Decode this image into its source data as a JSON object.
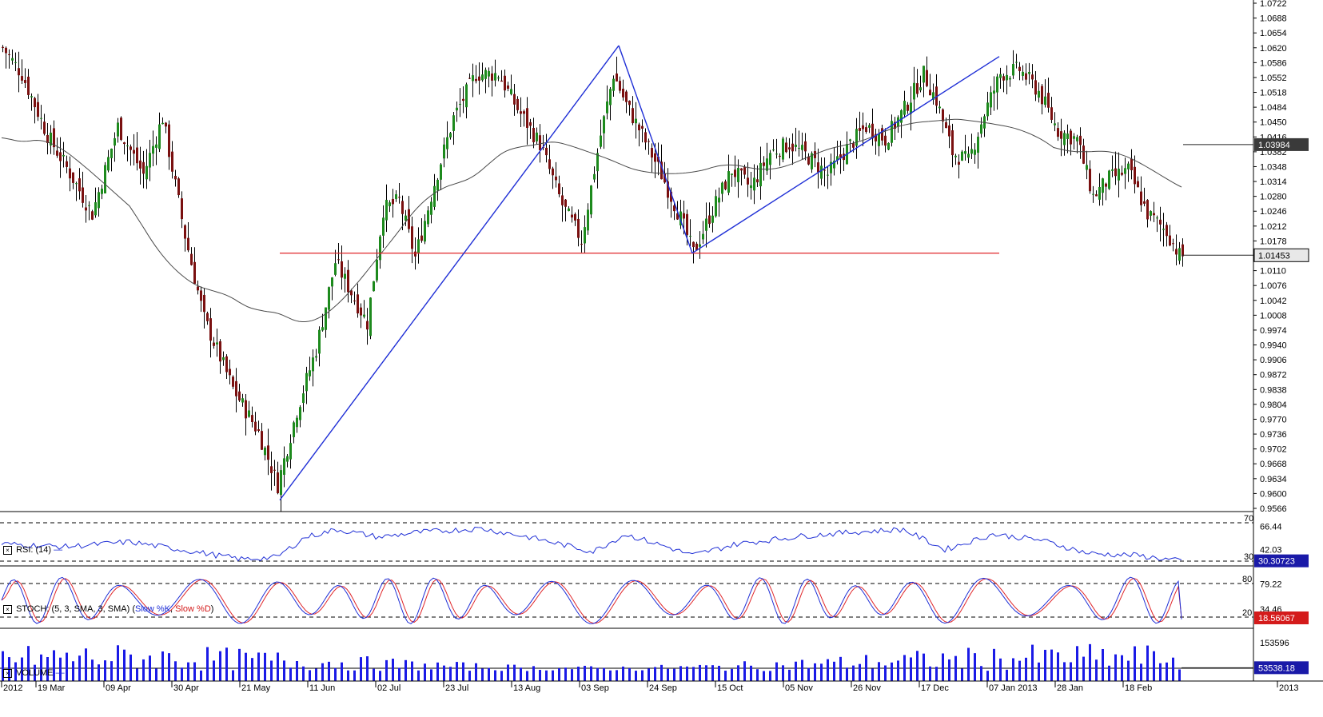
{
  "colors": {
    "bull_candle": "#1d8a1d",
    "bear_candle": "#7a1010",
    "ma_line": "#4a4a4a",
    "trendline": "#1f2fd6",
    "support_line": "#e0262a",
    "rsi_line": "#1f2fd6",
    "stoch_k": "#1f2fd6",
    "stoch_d": "#e0262a",
    "volume_bar": "#1a1ae6",
    "price_tag_dark": "#3a3a3a",
    "last_value_blue": "#1a1aa8",
    "last_value_red": "#d41b1b"
  },
  "chart_data": [
    {
      "type": "candlestick",
      "panel": "price",
      "ylim": [
        0.9566,
        1.0722
      ],
      "y_ticks": [
        "1.0722",
        "1.0688",
        "1.0654",
        "1.0620",
        "1.0586",
        "1.0552",
        "1.0518",
        "1.0484",
        "1.0450",
        "1.0416",
        "1.0382",
        "1.0348",
        "1.0314",
        "1.0280",
        "1.0246",
        "1.0212",
        "1.0178",
        "1.0110",
        "1.0076",
        "1.0042",
        "1.0008",
        "0.9974",
        "0.9940",
        "0.9906",
        "0.9872",
        "0.9838",
        "0.9804",
        "0.9770",
        "0.9736",
        "0.9702",
        "0.9668",
        "0.9634",
        "0.9600",
        "0.9566"
      ],
      "x_labels": [
        "2012",
        "19 Mar",
        "09 Apr",
        "30 Apr",
        "21 May",
        "11 Jun",
        "02 Jul",
        "23 Jul",
        "13 Aug",
        "03 Sep",
        "24 Sep",
        "15 Oct",
        "05 Nov",
        "26 Nov",
        "17 Dec",
        "07 Jan 2013",
        "28 Jan",
        "18 Feb",
        "2013"
      ],
      "anchors": [
        {
          "bar": 0,
          "close": 1.062
        },
        {
          "bar": 6,
          "close": 1.056
        },
        {
          "bar": 14,
          "close": 1.042
        },
        {
          "bar": 22,
          "close": 1.032
        },
        {
          "bar": 28,
          "close": 1.024
        },
        {
          "bar": 36,
          "close": 1.044
        },
        {
          "bar": 44,
          "close": 1.033
        },
        {
          "bar": 50,
          "close": 1.046
        },
        {
          "bar": 57,
          "close": 1.019
        },
        {
          "bar": 63,
          "close": 1.0
        },
        {
          "bar": 72,
          "close": 0.984
        },
        {
          "bar": 80,
          "close": 0.974
        },
        {
          "bar": 86,
          "close": 0.962
        },
        {
          "bar": 92,
          "close": 0.979
        },
        {
          "bar": 98,
          "close": 0.993
        },
        {
          "bar": 104,
          "close": 1.013
        },
        {
          "bar": 109,
          "close": 1.006
        },
        {
          "bar": 114,
          "close": 0.999
        },
        {
          "bar": 119,
          "close": 1.025
        },
        {
          "bar": 124,
          "close": 1.027
        },
        {
          "bar": 129,
          "close": 1.014
        },
        {
          "bar": 135,
          "close": 1.031
        },
        {
          "bar": 141,
          "close": 1.046
        },
        {
          "bar": 148,
          "close": 1.056
        },
        {
          "bar": 155,
          "close": 1.056
        },
        {
          "bar": 161,
          "close": 1.048
        },
        {
          "bar": 168,
          "close": 1.04
        },
        {
          "bar": 175,
          "close": 1.026
        },
        {
          "bar": 181,
          "close": 1.018
        },
        {
          "bar": 187,
          "close": 1.042
        },
        {
          "bar": 191,
          "close": 1.056
        },
        {
          "bar": 195,
          "close": 1.049
        },
        {
          "bar": 200,
          "close": 1.042
        },
        {
          "bar": 206,
          "close": 1.033
        },
        {
          "bar": 212,
          "close": 1.023
        },
        {
          "bar": 216,
          "close": 1.015
        },
        {
          "bar": 222,
          "close": 1.025
        },
        {
          "bar": 228,
          "close": 1.034
        },
        {
          "bar": 234,
          "close": 1.03
        },
        {
          "bar": 240,
          "close": 1.038
        },
        {
          "bar": 246,
          "close": 1.04
        },
        {
          "bar": 252,
          "close": 1.037
        },
        {
          "bar": 258,
          "close": 1.033
        },
        {
          "bar": 264,
          "close": 1.039
        },
        {
          "bar": 270,
          "close": 1.044
        },
        {
          "bar": 276,
          "close": 1.041
        },
        {
          "bar": 282,
          "close": 1.048
        },
        {
          "bar": 288,
          "close": 1.056
        },
        {
          "bar": 292,
          "close": 1.05
        },
        {
          "bar": 297,
          "close": 1.038
        },
        {
          "bar": 302,
          "close": 1.036
        },
        {
          "bar": 307,
          "close": 1.047
        },
        {
          "bar": 312,
          "close": 1.056
        },
        {
          "bar": 318,
          "close": 1.057
        },
        {
          "bar": 324,
          "close": 1.052
        },
        {
          "bar": 330,
          "close": 1.043
        },
        {
          "bar": 336,
          "close": 1.041
        },
        {
          "bar": 341,
          "close": 1.028
        },
        {
          "bar": 346,
          "close": 1.032
        },
        {
          "bar": 352,
          "close": 1.034
        },
        {
          "bar": 358,
          "close": 1.024
        },
        {
          "bar": 364,
          "close": 1.02
        },
        {
          "bar": 368,
          "close": 1.0145
        }
      ],
      "moving_average": {
        "value_last": 1.03984
      },
      "trendlines": [
        {
          "from": {
            "bar": 87,
            "price": 0.9585
          },
          "to": {
            "bar": 193,
            "price": 1.0625
          }
        },
        {
          "from": {
            "bar": 193,
            "price": 1.0625
          },
          "to": {
            "bar": 216,
            "price": 1.015
          }
        },
        {
          "from": {
            "bar": 216,
            "price": 1.015
          },
          "to": {
            "bar": 312,
            "price": 1.06
          }
        }
      ],
      "support_line": {
        "price": 1.015,
        "from_bar": 87,
        "to_bar": 312
      },
      "last_price": "1.01453",
      "ma_price": "1.03984"
    },
    {
      "type": "line",
      "panel": "rsi",
      "title": "RSI: (14)",
      "ylim": [
        25,
        75
      ],
      "y_ticks": [
        "66.44",
        "42.03"
      ],
      "levels": [
        70,
        30
      ],
      "level_labels": [
        "70",
        "30"
      ],
      "last_value": "30.30723",
      "anchors": [
        {
          "bar": 0,
          "v": 48
        },
        {
          "bar": 20,
          "v": 45
        },
        {
          "bar": 40,
          "v": 50
        },
        {
          "bar": 60,
          "v": 40
        },
        {
          "bar": 75,
          "v": 32
        },
        {
          "bar": 86,
          "v": 34
        },
        {
          "bar": 95,
          "v": 55
        },
        {
          "bar": 105,
          "v": 63
        },
        {
          "bar": 118,
          "v": 55
        },
        {
          "bar": 130,
          "v": 60
        },
        {
          "bar": 140,
          "v": 62
        },
        {
          "bar": 150,
          "v": 64
        },
        {
          "bar": 165,
          "v": 55
        },
        {
          "bar": 185,
          "v": 40
        },
        {
          "bar": 195,
          "v": 58
        },
        {
          "bar": 208,
          "v": 45
        },
        {
          "bar": 216,
          "v": 36
        },
        {
          "bar": 230,
          "v": 48
        },
        {
          "bar": 250,
          "v": 56
        },
        {
          "bar": 265,
          "v": 60
        },
        {
          "bar": 282,
          "v": 63
        },
        {
          "bar": 295,
          "v": 42
        },
        {
          "bar": 310,
          "v": 58
        },
        {
          "bar": 325,
          "v": 52
        },
        {
          "bar": 340,
          "v": 38
        },
        {
          "bar": 355,
          "v": 36
        },
        {
          "bar": 368,
          "v": 30.3
        }
      ]
    },
    {
      "type": "line",
      "panel": "stoch",
      "title_prefix": "STOCH: (5, 3, SMA, 3, SMA) (",
      "series": [
        {
          "name": "Slow %K",
          "values_source": "stoch_k"
        },
        {
          "name": "Slow %D",
          "values_source": "stoch_d"
        }
      ],
      "title_sep": ", ",
      "title_suffix": ")",
      "ylim": [
        0,
        100
      ],
      "y_ticks": [
        "79.22",
        "34.46"
      ],
      "levels": [
        80,
        20
      ],
      "level_labels": [
        "80",
        "20"
      ],
      "last_value": "18.56067"
    },
    {
      "type": "bar",
      "panel": "volume",
      "title": "VOLUME",
      "y_ticks": [
        "153596"
      ],
      "ylim": [
        0,
        180000
      ],
      "last_value": "53538.18"
    }
  ]
}
